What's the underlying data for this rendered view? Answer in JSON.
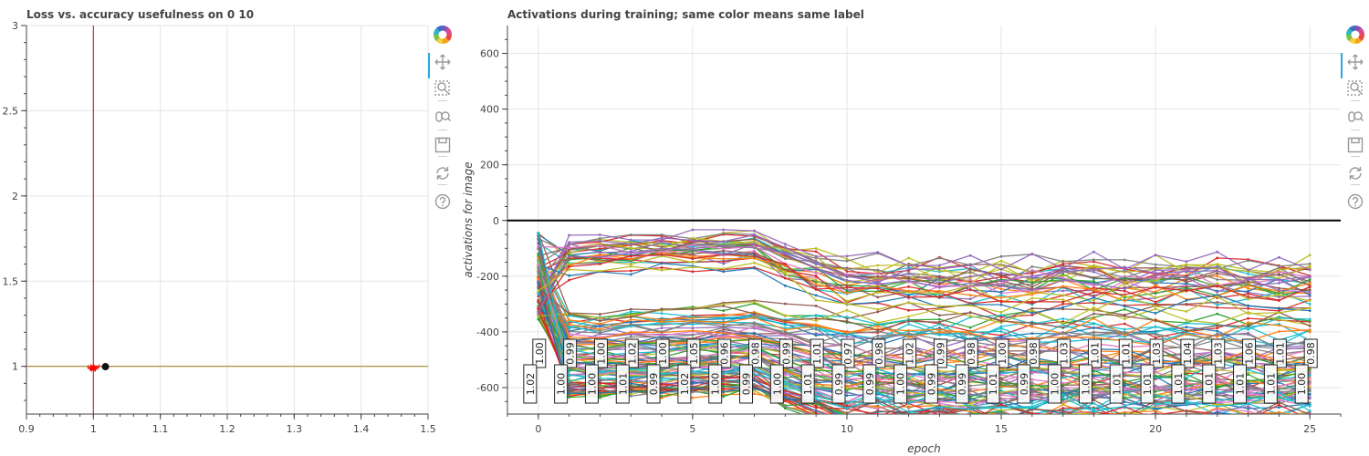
{
  "colors": {
    "grid": "#e5e5e5",
    "axis": "#444444",
    "text": "#444444",
    "title": "#444444",
    "vline": "#d62728",
    "hline": "#a6852a",
    "zeroline": "#000000",
    "scatter": "#ff0000",
    "marker": "#111111",
    "palette": [
      "#1f77b4",
      "#ff7f0e",
      "#2ca02c",
      "#d62728",
      "#9467bd",
      "#8c564b",
      "#e377c2",
      "#7f7f7f",
      "#bcbd22",
      "#17becf"
    ]
  },
  "toolbar": {
    "tools": [
      "bokeh-logo-icon",
      "pan-icon",
      "box-zoom-icon",
      "wheel-zoom-icon",
      "save-icon",
      "reset-icon",
      "help-icon"
    ]
  },
  "chart_data": [
    {
      "type": "scatter",
      "title": "Loss vs. accuracy usefulness on 0 10",
      "xlabel": "",
      "ylabel": "",
      "xlim": [
        0.9,
        1.5
      ],
      "ylim": [
        0.72,
        3.0
      ],
      "xticks": [
        "0.9",
        "1",
        "1.1",
        "1.2",
        "1.3",
        "1.4",
        "1.5"
      ],
      "yticks": [
        "1",
        "1.5",
        "2",
        "2.5",
        "3"
      ],
      "vline_x": 1.0,
      "hline_y": 1.0,
      "marker_point": [
        1.018,
        0.998
      ],
      "cloud_center": [
        1.0,
        0.99
      ],
      "cloud_spread": [
        0.006,
        0.008
      ],
      "cloud_count": 60
    },
    {
      "type": "line",
      "title": "Activations during training; same color means same label",
      "xlabel": "epoch",
      "ylabel": "activations for image",
      "xlim": [
        -1,
        26
      ],
      "ylim": [
        -695,
        700
      ],
      "xticks": [
        "0",
        "5",
        "10",
        "15",
        "20",
        "25"
      ],
      "yticks": [
        "600",
        "400",
        "200",
        "0",
        "-200",
        "-400",
        "-600"
      ],
      "zero_line": 0,
      "series_count": 120,
      "epochs": [
        0,
        1,
        2,
        3,
        4,
        5,
        6,
        7,
        8,
        9,
        10,
        11,
        12,
        13,
        14,
        15,
        16,
        17,
        18,
        19,
        20,
        21,
        22,
        23,
        24,
        25
      ],
      "labels": [
        {
          "epoch": 0,
          "top": "1.00",
          "bottom": "1.02"
        },
        {
          "epoch": 1,
          "top": "0.99",
          "bottom": "1.00"
        },
        {
          "epoch": 2,
          "top": "1.00",
          "bottom": "1.00"
        },
        {
          "epoch": 3,
          "top": "1.02",
          "bottom": "1.01"
        },
        {
          "epoch": 4,
          "top": "1.00",
          "bottom": "0.99"
        },
        {
          "epoch": 5,
          "top": "1.05",
          "bottom": "1.02"
        },
        {
          "epoch": 6,
          "top": "0.96",
          "bottom": "1.00"
        },
        {
          "epoch": 7,
          "top": "0.98",
          "bottom": "0.99"
        },
        {
          "epoch": 8,
          "top": "0.99",
          "bottom": "1.00"
        },
        {
          "epoch": 9,
          "top": "1.01",
          "bottom": "1.01"
        },
        {
          "epoch": 10,
          "top": "0.97",
          "bottom": "0.99"
        },
        {
          "epoch": 11,
          "top": "0.98",
          "bottom": "0.99"
        },
        {
          "epoch": 12,
          "top": "1.02",
          "bottom": "1.00"
        },
        {
          "epoch": 13,
          "top": "0.99",
          "bottom": "0.99"
        },
        {
          "epoch": 14,
          "top": "0.98",
          "bottom": "0.99"
        },
        {
          "epoch": 15,
          "top": "1.00",
          "bottom": "1.01"
        },
        {
          "epoch": 16,
          "top": "0.98",
          "bottom": "0.99"
        },
        {
          "epoch": 17,
          "top": "1.03",
          "bottom": "1.00"
        },
        {
          "epoch": 18,
          "top": "1.01",
          "bottom": "1.01"
        },
        {
          "epoch": 19,
          "top": "1.01",
          "bottom": "1.01"
        },
        {
          "epoch": 20,
          "top": "1.03",
          "bottom": "1.01"
        },
        {
          "epoch": 21,
          "top": "1.04",
          "bottom": "1.01"
        },
        {
          "epoch": 22,
          "top": "1.03",
          "bottom": "1.01"
        },
        {
          "epoch": 23,
          "top": "1.06",
          "bottom": "1.01"
        },
        {
          "epoch": 24,
          "top": "1.01",
          "bottom": "1.01"
        },
        {
          "epoch": 25,
          "top": "0.98",
          "bottom": "1.00"
        }
      ]
    }
  ]
}
